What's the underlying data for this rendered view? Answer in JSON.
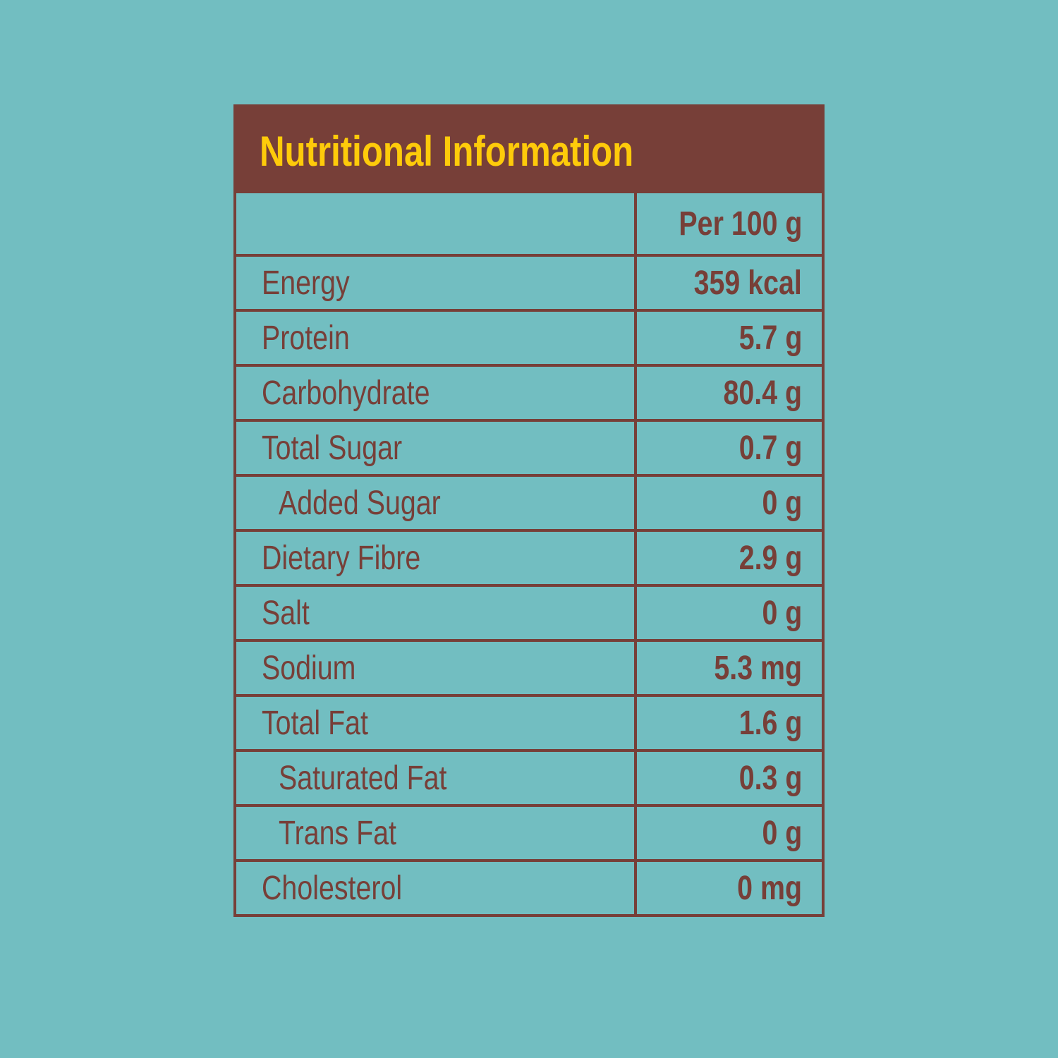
{
  "header": {
    "title": "Nutritional Information"
  },
  "table": {
    "column_header": "Per 100 g",
    "rows": [
      [
        "Energy",
        "359 kcal"
      ],
      [
        "Protein",
        "5.7 g"
      ],
      [
        "Carbohydrate",
        "80.4 g"
      ],
      [
        "Total Sugar",
        "0.7 g"
      ],
      [
        "Added Sugar",
        "0 g"
      ],
      [
        "Dietary Fibre",
        "2.9 g"
      ],
      [
        "Salt",
        "0 g"
      ],
      [
        "Sodium",
        "5.3 mg"
      ],
      [
        "Total Fat",
        "1.6 g"
      ],
      [
        "Saturated Fat",
        "0.3 g"
      ],
      [
        "Trans Fat",
        "0 g"
      ],
      [
        "Cholesterol",
        "0 mg"
      ]
    ]
  }
}
